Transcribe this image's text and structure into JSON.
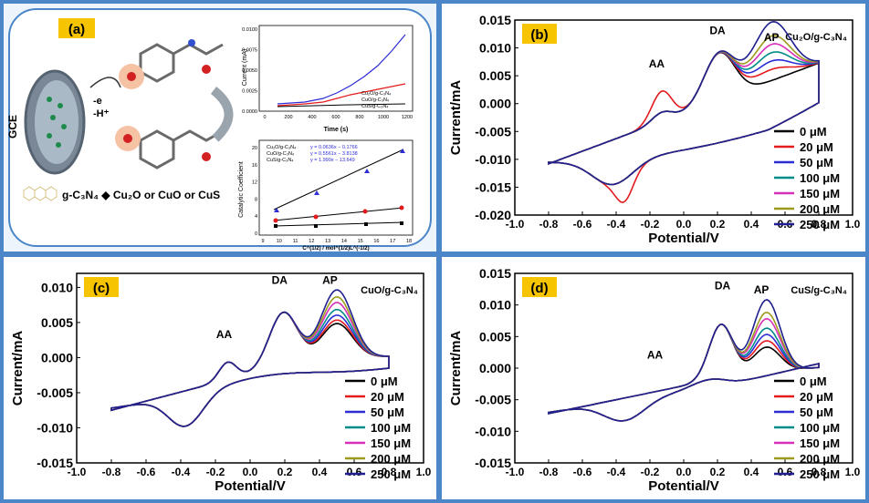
{
  "colors": {
    "c0": "#000000",
    "c20": "#e41a1c",
    "c50": "#2d2dd6",
    "c100": "#008b8b",
    "c150": "#d62fb8",
    "c200": "#9c9a1c",
    "c250": "#1f1f8f",
    "label_bg": "#f6c400",
    "frame": "#4a86c8"
  },
  "panel_a": {
    "label": "(a)",
    "electrode": "GCE",
    "reaction_top": "-e",
    "reaction_bottom": "-H⁺",
    "legend_text": "g-C₃N₄ ◆ Cu₂O or CuO or CuS",
    "inset1": {
      "ylabel": "Current (mA)",
      "xlabel": "Time (s)",
      "yticks": [
        "0.0000",
        "0.0025",
        "0.0050",
        "0.0075",
        "0.0100"
      ],
      "xticks": [
        "0",
        "200",
        "400",
        "600",
        "800",
        "1000",
        "1200"
      ],
      "legend": [
        "Cu₂O/g-C₃N₄",
        "CuO/g-C₃N₄",
        "CuS/g-C₃N₄"
      ]
    },
    "inset2": {
      "ylabel": "Catalytic Coefficient",
      "xlabel": "C^(1/2) / mol^(1/2)L^(-1/2)",
      "yticks": [
        "0",
        "4",
        "8",
        "12",
        "16",
        "20"
      ],
      "xticks": [
        "9",
        "10",
        "11",
        "12",
        "13",
        "14",
        "15",
        "16",
        "17",
        "18"
      ],
      "legend": [
        {
          "name": "Cu₂O/g-C₃N₄",
          "eq": "y = 0.0636x − 0.1766"
        },
        {
          "name": "CuO/g-C₃N₄",
          "eq": "y = 0.5561x − 3.8138"
        },
        {
          "name": "CuS/g-C₃N₄",
          "eq": "y = 1.990x − 13.649"
        }
      ]
    }
  },
  "cv_legend": [
    "0 μM",
    "20 μM",
    "50 μM",
    "100 μM",
    "150 μM",
    "200 μM",
    "250 μM"
  ],
  "chart_data": [
    {
      "type": "line",
      "panel_label": "(b)",
      "title": "Cu₂O/g-C₃N₄",
      "xlabel": "Potential/V",
      "ylabel": "Current/mA",
      "xlim": [
        -1.0,
        1.0
      ],
      "ylim": [
        -0.02,
        0.015
      ],
      "xticks": [
        "-1.0",
        "-0.8",
        "-0.6",
        "-0.4",
        "-0.2",
        "0.0",
        "0.2",
        "0.4",
        "0.6",
        "0.8",
        "1.0"
      ],
      "yticks": [
        "-0.020",
        "-0.015",
        "-0.010",
        "-0.005",
        "0.000",
        "0.005",
        "0.010",
        "0.015"
      ],
      "annotations": [
        "AA",
        "DA",
        "AP"
      ],
      "series": [
        {
          "name": "0 μM",
          "ap_peak": 0.0
        },
        {
          "name": "20 μM",
          "ap_peak": 0.002
        },
        {
          "name": "50 μM",
          "ap_peak": 0.0035
        },
        {
          "name": "100 μM",
          "ap_peak": 0.005
        },
        {
          "name": "150 μM",
          "ap_peak": 0.0065
        },
        {
          "name": "200 μM",
          "ap_peak": 0.008
        },
        {
          "name": "250 μM",
          "ap_peak": 0.0105
        }
      ]
    },
    {
      "type": "line",
      "panel_label": "(c)",
      "title": "CuO/g-C₃N₄",
      "xlabel": "Potential/V",
      "ylabel": "Current/mA",
      "xlim": [
        -1.0,
        1.0
      ],
      "ylim": [
        -0.015,
        0.012
      ],
      "xticks": [
        "-1.0",
        "-0.8",
        "-0.6",
        "-0.4",
        "-0.2",
        "0.0",
        "0.2",
        "0.4",
        "0.6",
        "0.8",
        "1.0"
      ],
      "yticks": [
        "-0.015",
        "-0.010",
        "-0.005",
        "0.000",
        "0.005",
        "0.010"
      ],
      "annotations": [
        "AA",
        "DA",
        "AP"
      ],
      "series": [
        {
          "name": "0 μM",
          "ap_peak": 0.005
        },
        {
          "name": "20 μM",
          "ap_peak": 0.0055
        },
        {
          "name": "50 μM",
          "ap_peak": 0.0062
        },
        {
          "name": "100 μM",
          "ap_peak": 0.007
        },
        {
          "name": "150 μM",
          "ap_peak": 0.008
        },
        {
          "name": "200 μM",
          "ap_peak": 0.0088
        },
        {
          "name": "250 μM",
          "ap_peak": 0.0098
        }
      ]
    },
    {
      "type": "line",
      "panel_label": "(d)",
      "title": "CuS/g-C₃N₄",
      "xlabel": "Potential/V",
      "ylabel": "Current/mA",
      "xlim": [
        -1.0,
        1.0
      ],
      "ylim": [
        -0.015,
        0.015
      ],
      "xticks": [
        "-1.0",
        "-0.8",
        "-0.6",
        "-0.4",
        "-0.2",
        "0.0",
        "0.2",
        "0.4",
        "0.6",
        "0.8",
        "1.0"
      ],
      "yticks": [
        "-0.015",
        "-0.010",
        "-0.005",
        "0.000",
        "0.005",
        "0.010",
        "0.015"
      ],
      "annotations": [
        "AA",
        "DA",
        "AP"
      ],
      "series": [
        {
          "name": "0 μM",
          "ap_peak": 0.004
        },
        {
          "name": "20 μM",
          "ap_peak": 0.005
        },
        {
          "name": "50 μM",
          "ap_peak": 0.006
        },
        {
          "name": "100 μM",
          "ap_peak": 0.007
        },
        {
          "name": "150 μM",
          "ap_peak": 0.0085
        },
        {
          "name": "200 μM",
          "ap_peak": 0.0095
        },
        {
          "name": "250 μM",
          "ap_peak": 0.0115
        }
      ]
    }
  ]
}
